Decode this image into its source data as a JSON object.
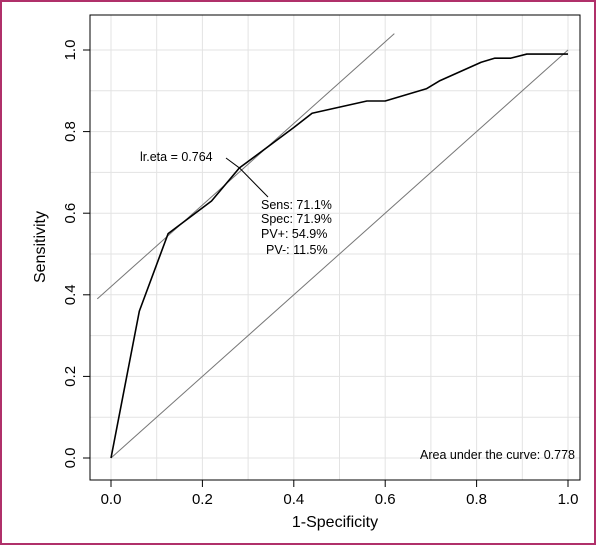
{
  "chart_data": {
    "type": "line",
    "xlabel": "1-Specificity",
    "ylabel": "Sensitivity",
    "xlim": [
      0,
      1
    ],
    "ylim": [
      0,
      1
    ],
    "x_ticks": [
      "0.0",
      "0.2",
      "0.4",
      "0.6",
      "0.8",
      "1.0"
    ],
    "y_ticks": [
      "0.0",
      "0.2",
      "0.4",
      "0.6",
      "0.8",
      "1.0"
    ],
    "grid": true,
    "series": [
      {
        "x": [
          0.0,
          0.062,
          0.125,
          0.22,
          0.281,
          0.4,
          0.44,
          0.5,
          0.56,
          0.6,
          0.69,
          0.72,
          0.75,
          0.81,
          0.84,
          0.875,
          0.91,
          0.97,
          1.0
        ],
        "y": [
          0.0,
          0.36,
          0.55,
          0.63,
          0.711,
          0.81,
          0.845,
          0.86,
          0.875,
          0.875,
          0.905,
          0.925,
          0.94,
          0.97,
          0.98,
          0.98,
          0.99,
          0.99,
          0.99
        ]
      }
    ],
    "reference_line": {
      "x": [
        0,
        1
      ],
      "y": [
        0,
        1
      ]
    },
    "tangent_line": {
      "x": [
        -0.03,
        0.62
      ],
      "y": [
        0.39,
        1.04
      ]
    },
    "cutoff": {
      "x": 0.281,
      "y": 0.711,
      "label": "lr.eta = 0.764",
      "stats": [
        "Sens: 71.1%",
        "Spec: 71.9%",
        "PV+: 54.9%",
        "PV-: 11.5%"
      ]
    },
    "auc_label": "Area under the curve: 0.778",
    "colors": {
      "curve": "#000000",
      "reference": "#777777",
      "grid": "#e3e3e3",
      "frame": "#b0306a"
    }
  }
}
